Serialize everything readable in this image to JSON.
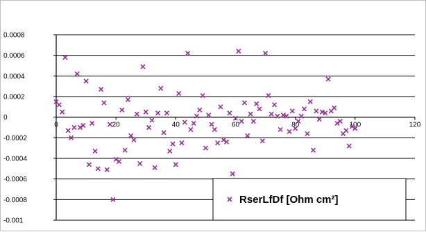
{
  "chart_data": {
    "type": "scatter",
    "title": "",
    "xlabel": "",
    "ylabel": "",
    "xlim": [
      0,
      120
    ],
    "ylim": [
      -0.001,
      0.0008
    ],
    "x_ticks": [
      0,
      20,
      40,
      60,
      80,
      100,
      120
    ],
    "y_ticks": [
      0.0008,
      0.0006,
      0.0004,
      0.0002,
      0,
      -0.0002,
      -0.0004,
      -0.0006,
      -0.0008,
      -0.001
    ],
    "x_tick_labels": [
      "0",
      "20",
      "40",
      "60",
      "80",
      "100",
      "120"
    ],
    "y_tick_labels": [
      "0.0008",
      "0.0006",
      "0.0004",
      "0.0002",
      "0",
      "-0.0002",
      "-0.0004",
      "-0.0006",
      "-0.0008",
      "-0.001"
    ],
    "grid": "horizontal",
    "legend_position": "bottom-right",
    "marker": "x",
    "marker_color": "#9b2d9b",
    "series": [
      {
        "name": "RserLfDf [Ohm cm²]",
        "points": [
          [
            0,
            0.00015
          ],
          [
            1,
            0.00012
          ],
          [
            2,
            5e-05
          ],
          [
            3,
            0.00058
          ],
          [
            4,
            -0.00013
          ],
          [
            5,
            -0.0002
          ],
          [
            6,
            -0.0001
          ],
          [
            7,
            0.00042
          ],
          [
            8,
            -0.0001
          ],
          [
            9,
            -8e-05
          ],
          [
            10,
            0.00035
          ],
          [
            11,
            -0.00046
          ],
          [
            12,
            -6e-05
          ],
          [
            13,
            -0.00033
          ],
          [
            14,
            -0.0005
          ],
          [
            15,
            0.00027
          ],
          [
            16,
            0.00014
          ],
          [
            17,
            -0.00051
          ],
          [
            18,
            -7e-05
          ],
          [
            19,
            -0.0008
          ],
          [
            20,
            -0.00041
          ],
          [
            21,
            -0.00043
          ],
          [
            22,
            7e-05
          ],
          [
            23,
            -0.00032
          ],
          [
            24,
            0.00017
          ],
          [
            25,
            -0.00018
          ],
          [
            26,
            -0.00022
          ],
          [
            27,
            3e-05
          ],
          [
            28,
            -0.00045
          ],
          [
            29,
            0.00049
          ],
          [
            30,
            5e-05
          ],
          [
            31,
            -0.0001
          ],
          [
            32,
            -3e-05
          ],
          [
            33,
            -0.00049
          ],
          [
            34,
            4e-05
          ],
          [
            35,
            0.00028
          ],
          [
            36,
            -0.00015
          ],
          [
            37,
            4e-05
          ],
          [
            38,
            -0.00033
          ],
          [
            39,
            -0.00026
          ],
          [
            40,
            -0.00046
          ],
          [
            41,
            0.00023
          ],
          [
            42,
            -0.00025
          ],
          [
            43,
            -5e-05
          ],
          [
            44,
            0.00062
          ],
          [
            45,
            -0.00012
          ],
          [
            46,
            -6e-05
          ],
          [
            47,
            1e-05
          ],
          [
            48,
            7e-05
          ],
          [
            49,
            0.00021
          ],
          [
            50,
            -0.0003
          ],
          [
            51,
            2e-05
          ],
          [
            52,
            -7e-05
          ],
          [
            53,
            -0.00012
          ],
          [
            54,
            -0.00025
          ],
          [
            55,
            0.0001
          ],
          [
            56,
            -0.00022
          ],
          [
            57,
            -0.00024
          ],
          [
            58,
            4e-05
          ],
          [
            59,
            -0.00055
          ],
          [
            60,
            -1e-05
          ],
          [
            61,
            0.00064
          ],
          [
            62,
            -4e-05
          ],
          [
            63,
            0.00014
          ],
          [
            64,
            -0.00018
          ],
          [
            65,
            3e-05
          ],
          [
            66,
            -4e-05
          ],
          [
            67,
            0.00013
          ],
          [
            68,
            8e-05
          ],
          [
            69,
            -0.00023
          ],
          [
            70,
            0.00062
          ],
          [
            71,
            0.00021
          ],
          [
            72,
            3e-05
          ],
          [
            73,
            0.00012
          ],
          [
            74,
            1e-05
          ],
          [
            75,
            -0.00012
          ],
          [
            76,
            2e-05
          ],
          [
            77,
            1e-05
          ],
          [
            78,
            -0.00014
          ],
          [
            79,
            6e-05
          ],
          [
            80,
            -0.00011
          ],
          [
            81,
            -4e-05
          ],
          [
            82,
            1e-05
          ],
          [
            83,
            8e-05
          ],
          [
            84,
            -0.00016
          ],
          [
            85,
            0.00015
          ],
          [
            86,
            -0.00032
          ],
          [
            87,
            6e-05
          ],
          [
            88,
            -2e-05
          ],
          [
            89,
            5e-05
          ],
          [
            90,
            4e-05
          ],
          [
            91,
            0.00037
          ],
          [
            92,
            6e-05
          ],
          [
            93,
            9e-05
          ],
          [
            94,
            -6e-05
          ],
          [
            95,
            -4e-05
          ],
          [
            96,
            -0.00016
          ],
          [
            97,
            -0.00013
          ],
          [
            98,
            -0.00028
          ],
          [
            99,
            -9e-05
          ],
          [
            100,
            -0.00011
          ]
        ]
      }
    ]
  }
}
